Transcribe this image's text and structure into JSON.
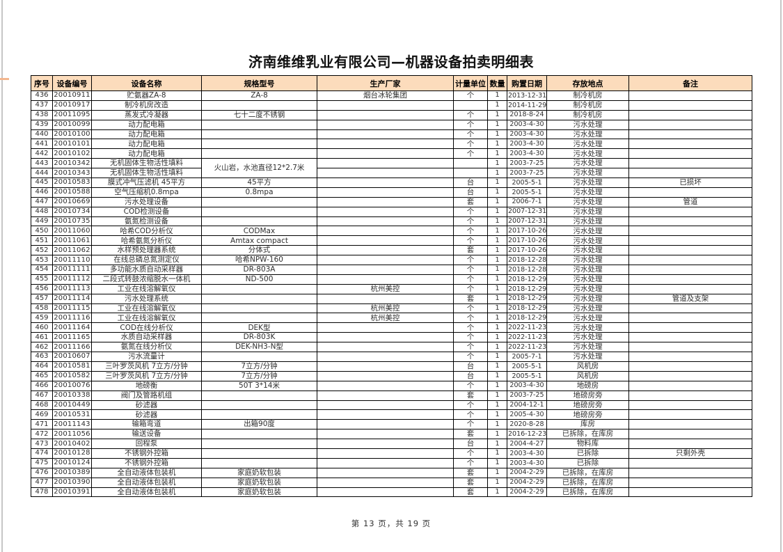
{
  "page": {
    "title": "济南维维乳业有限公司—机器设备拍卖明细表",
    "footer": "第 13 页，共 19 页"
  },
  "colors": {
    "header_bg": "#fcdcbc",
    "border": "#000000",
    "edge_gray": "#c6c6c6",
    "tick_accent": "#f3b68e"
  },
  "table": {
    "columns": [
      "序号",
      "设备编号",
      "设备名称",
      "规格型号",
      "生产厂家",
      "计量单位",
      "数量",
      "购置日期",
      "存放地点",
      "备注"
    ],
    "merges": [
      {
        "row": 7,
        "col": 3,
        "rowspan": 2
      }
    ],
    "rows": [
      [
        "436",
        "20010911",
        "贮氨器ZA-8",
        "ZA-8",
        "烟台冰轮集团",
        "个",
        "1",
        "2013-12-31",
        "制冷机房",
        ""
      ],
      [
        "437",
        "20010917",
        "制冷机房改造",
        "",
        "",
        "",
        "1",
        "2014-11-29",
        "制冷机房",
        ""
      ],
      [
        "438",
        "20011095",
        "蒸发式冷凝器",
        "七十二度不锈钢",
        "",
        "个",
        "1",
        "2018-8-24",
        "制冷机房",
        ""
      ],
      [
        "439",
        "20010099",
        "动力配电箱",
        "",
        "",
        "个",
        "1",
        "2003-4-30",
        "污水处理",
        ""
      ],
      [
        "440",
        "20010100",
        "动力配电箱",
        "",
        "",
        "个",
        "1",
        "2003-4-30",
        "污水处理",
        ""
      ],
      [
        "441",
        "20010101",
        "动力配电箱",
        "",
        "",
        "个",
        "1",
        "2003-4-30",
        "污水处理",
        ""
      ],
      [
        "442",
        "20010102",
        "动力配电箱",
        "",
        "",
        "个",
        "1",
        "2003-4-30",
        "污水处理",
        ""
      ],
      [
        "443",
        "20010342",
        "无机固体生物活性填料",
        "火山岩，水池直径12*2.7米",
        "",
        "",
        "1",
        "2003-7-25",
        "污水处理",
        ""
      ],
      [
        "444",
        "20010343",
        "无机固体生物活性填料",
        "",
        "",
        "",
        "1",
        "2003-7-25",
        "污水处理",
        ""
      ],
      [
        "445",
        "20010583",
        "膜式冲气压滤机 45平方",
        "45平方",
        "",
        "台",
        "1",
        "2005-5-1",
        "污水处理",
        "已损坏"
      ],
      [
        "446",
        "20010588",
        "空气压缩机0.8mpa",
        "0.8mpa",
        "",
        "台",
        "1",
        "2005-5-1",
        "污水处理",
        ""
      ],
      [
        "447",
        "20010669",
        "污水处理设备",
        "",
        "",
        "套",
        "1",
        "2006-7-1",
        "污水处理",
        "管道"
      ],
      [
        "448",
        "20010734",
        "COD检测设备",
        "",
        "",
        "个",
        "1",
        "2007-12-31",
        "污水处理",
        ""
      ],
      [
        "449",
        "20010735",
        "氨氮检测设备",
        "",
        "",
        "个",
        "1",
        "2007-12-31",
        "污水处理",
        ""
      ],
      [
        "450",
        "20011060",
        "哈希COD分析仪",
        "CODMax",
        "",
        "个",
        "1",
        "2017-10-26",
        "污水处理",
        ""
      ],
      [
        "451",
        "20011061",
        "哈希氨氮分析仪",
        "Amtax compact",
        "",
        "个",
        "1",
        "2017-10-26",
        "污水处理",
        ""
      ],
      [
        "452",
        "20011062",
        "水样预处理器系统",
        "分体式",
        "",
        "套",
        "1",
        "2017-10-26",
        "污水处理",
        ""
      ],
      [
        "453",
        "20011110",
        "在线总磷总氮测定仪",
        "哈希NPW-160",
        "",
        "个",
        "1",
        "2018-12-28",
        "污水处理",
        ""
      ],
      [
        "454",
        "20011111",
        "多功能水质自动采样器",
        "DR-803A",
        "",
        "个",
        "1",
        "2018-12-28",
        "污水处理",
        ""
      ],
      [
        "455",
        "20011112",
        "二段式转鼓浓缩脱水一体机",
        "ND-500",
        "",
        "个",
        "1",
        "2018-12-29",
        "污水处理",
        ""
      ],
      [
        "456",
        "20011113",
        "工业在线溶解氧仪",
        "",
        "杭州美控",
        "个",
        "1",
        "2018-12-29",
        "污水处理",
        ""
      ],
      [
        "457",
        "20011114",
        "污水处理系统",
        "",
        "",
        "套",
        "1",
        "2018-12-29",
        "污水处理",
        "管道及支架"
      ],
      [
        "458",
        "20011115",
        "工业在线溶解氧仪",
        "",
        "杭州美控",
        "个",
        "1",
        "2018-12-29",
        "污水处理",
        ""
      ],
      [
        "459",
        "20011116",
        "工业在线溶解氧仪",
        "",
        "杭州美控",
        "个",
        "1",
        "2018-12-29",
        "污水处理",
        ""
      ],
      [
        "460",
        "20011164",
        "COD在线分析仪",
        "DEK型",
        "",
        "个",
        "1",
        "2022-11-23",
        "污水处理",
        ""
      ],
      [
        "461",
        "20011165",
        "水质自动采样器",
        "DR-803K",
        "",
        "个",
        "1",
        "2022-11-23",
        "污水处理",
        ""
      ],
      [
        "462",
        "20011166",
        "氨氮在线分析仪",
        "DEK-NH3-N型",
        "",
        "个",
        "1",
        "2022-11-23",
        "污水处理",
        ""
      ],
      [
        "463",
        "20010607",
        "污水流量计",
        "",
        "",
        "个",
        "1",
        "2005-7-1",
        "污水处理",
        ""
      ],
      [
        "464",
        "20010581",
        "三叶罗茨风机 7立方/分钟",
        "7立方/分钟",
        "",
        "台",
        "1",
        "2005-5-1",
        "风机房",
        ""
      ],
      [
        "465",
        "20010582",
        "三叶罗茨风机 7立方/分钟",
        "7立方/分钟",
        "",
        "台",
        "1",
        "2005-5-1",
        "风机房",
        ""
      ],
      [
        "466",
        "20010076",
        "地磅衡",
        "50T 3*14米",
        "",
        "个",
        "1",
        "2003-4-30",
        "地磅房",
        ""
      ],
      [
        "467",
        "20010338",
        "阀门及管路机组",
        "",
        "",
        "套",
        "1",
        "2003-7-25",
        "地磅房旁",
        ""
      ],
      [
        "468",
        "20010449",
        "砂滤器",
        "",
        "",
        "个",
        "1",
        "2004-12-1",
        "地磅房旁",
        ""
      ],
      [
        "469",
        "20010531",
        "砂滤器",
        "",
        "",
        "个",
        "1",
        "2005-4-30",
        "地磅房旁",
        ""
      ],
      [
        "471",
        "20011143",
        "输箱弯道",
        "出箱90度",
        "",
        "个",
        "1",
        "2020-8-28",
        "库房",
        ""
      ],
      [
        "472",
        "20011056",
        "输送设备",
        "",
        "",
        "套",
        "1",
        "2016-12-23",
        "已拆除，在库房",
        ""
      ],
      [
        "473",
        "20010402",
        "回程泵",
        "",
        "",
        "台",
        "1",
        "2004-4-27",
        "物料库",
        ""
      ],
      [
        "474",
        "20010128",
        "不锈钢外控箱",
        "",
        "",
        "个",
        "1",
        "2003-4-30",
        "已拆除",
        "只剩外壳"
      ],
      [
        "475",
        "20010124",
        "不锈钢外控箱",
        "",
        "",
        "个",
        "1",
        "2003-4-30",
        "已拆除",
        ""
      ],
      [
        "476",
        "20010389",
        "全自动液体包装机",
        "家庭奶软包装",
        "",
        "套",
        "1",
        "2004-2-29",
        "已拆除，在库房",
        ""
      ],
      [
        "477",
        "20010390",
        "全自动液体包装机",
        "家庭奶软包装",
        "",
        "套",
        "1",
        "2004-2-29",
        "已拆除，在库房",
        ""
      ],
      [
        "478",
        "20010391",
        "全自动液体包装机",
        "家庭奶软包装",
        "",
        "套",
        "1",
        "2004-2-29",
        "已拆除，在库房",
        ""
      ]
    ]
  }
}
